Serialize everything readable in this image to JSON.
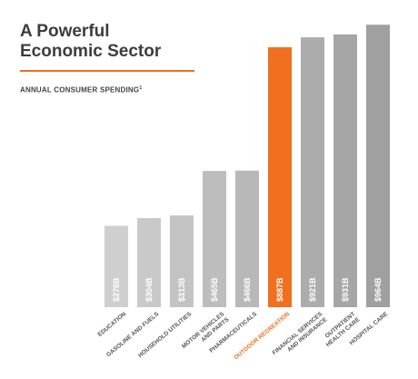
{
  "header": {
    "title_line1": "A Powerful",
    "title_line2": "Economic Sector",
    "subtitle": "ANNUAL CONSUMER SPENDING",
    "subtitle_note": "1"
  },
  "colors": {
    "highlight": "#f07020",
    "bar_light": "#cfcfcf",
    "bar_dark": "#a0a0a0"
  },
  "chart_data": {
    "type": "bar",
    "title": "A Powerful Economic Sector",
    "subtitle": "ANNUAL CONSUMER SPENDING",
    "categories": [
      [
        "EDUCATION"
      ],
      [
        "GASOLINE AND FUELS"
      ],
      [
        "HOUSEHOLD UTILITIES"
      ],
      [
        "MOTOR VEHICLES",
        "AND PARTS"
      ],
      [
        "PHARMACEUTICALS"
      ],
      [
        "OUTDOOR RECREATION"
      ],
      [
        "FINANCIAL SERVICES",
        "AND INSURANCE"
      ],
      [
        "OUTPATIENT",
        "HEALTH CARE"
      ],
      [
        "HOSPITAL CARE"
      ]
    ],
    "values": [
      278,
      304,
      313,
      465,
      466,
      887,
      921,
      931,
      964
    ],
    "value_labels": [
      "$278B",
      "$304B",
      "$313B",
      "$465B",
      "$466B",
      "$887B",
      "$921B",
      "$931B",
      "$964B"
    ],
    "unit": "$ billions",
    "highlight_index": 5,
    "ylim": [
      0,
      1000
    ],
    "grid": false,
    "legend": "none"
  }
}
